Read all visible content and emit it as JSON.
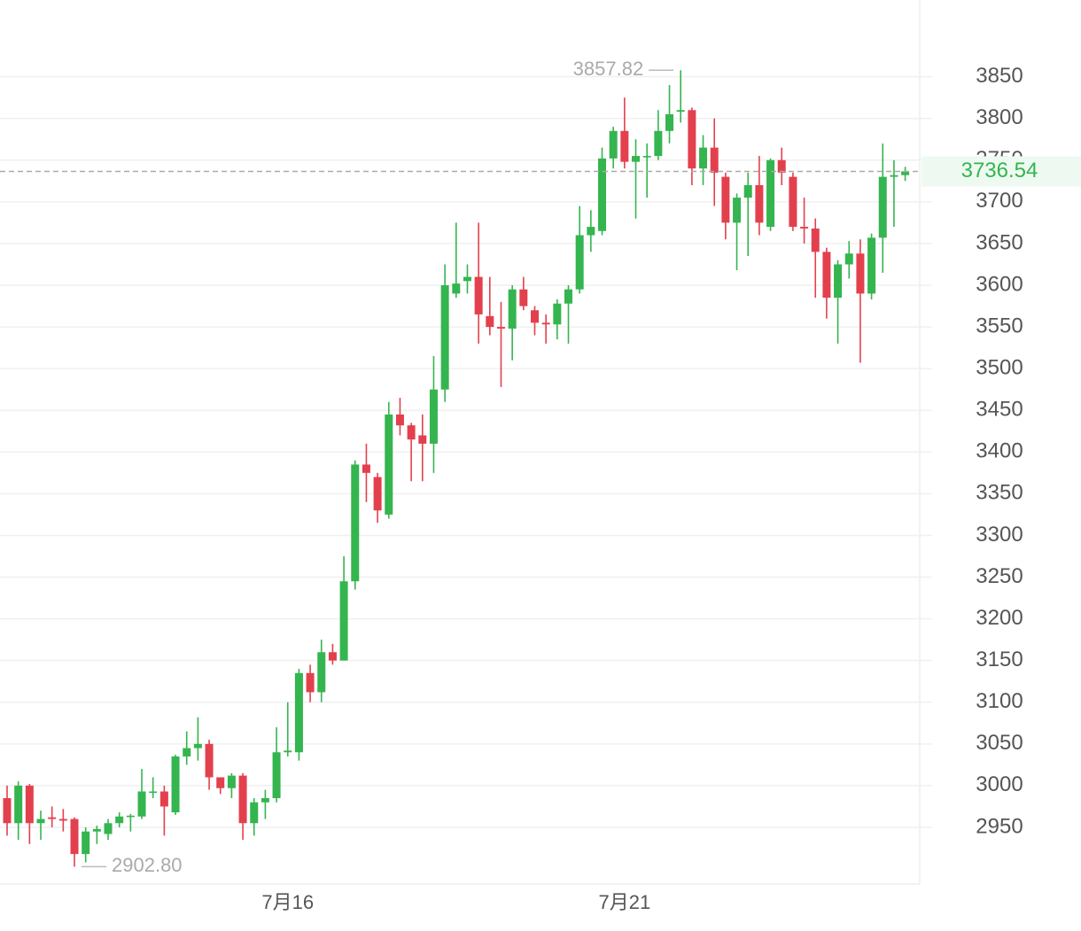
{
  "chart_data": {
    "type": "candlestick",
    "categories": [
      null,
      null,
      null,
      null,
      null,
      null,
      null,
      null,
      null,
      null,
      null,
      null,
      null,
      null,
      null,
      null,
      null,
      null,
      null,
      null,
      null,
      null,
      null,
      null,
      null,
      "7月16",
      null,
      null,
      null,
      null,
      null,
      null,
      null,
      null,
      null,
      null,
      null,
      null,
      null,
      null,
      null,
      null,
      null,
      null,
      null,
      null,
      null,
      null,
      null,
      null,
      null,
      null,
      null,
      null,
      null,
      "7月21",
      null,
      null,
      null,
      null,
      null,
      null,
      null,
      null,
      null,
      null,
      null,
      null,
      null,
      null,
      null,
      null,
      null,
      null,
      null,
      null,
      null,
      null,
      null,
      null,
      null
    ],
    "open": [
      2985,
      2955,
      3000,
      2955,
      2962,
      2960,
      2960,
      2918,
      2945,
      2942,
      2955,
      2963,
      2963,
      2993,
      2993,
      2968,
      3035,
      3045,
      3050,
      3010,
      2997,
      3012,
      2955,
      2980,
      2985,
      3040,
      3040,
      3135,
      3112,
      3160,
      3150,
      3245,
      3385,
      3370,
      3325,
      3445,
      3432,
      3420,
      3410,
      3475,
      3590,
      3605,
      3610,
      3563,
      3550,
      3548,
      3595,
      3570,
      3555,
      3553,
      3578,
      3595,
      3660,
      3665,
      3752,
      3785,
      3748,
      3755,
      3755,
      3785,
      3808,
      3810,
      3740,
      3765,
      3730,
      3675,
      3705,
      3720,
      3670,
      3750,
      3730,
      3670,
      3668,
      3640,
      3585,
      3625,
      3638,
      3590,
      3657,
      3730,
      3732
    ],
    "high": [
      3000,
      3005,
      3002,
      2970,
      2975,
      2972,
      2962,
      2950,
      2952,
      2960,
      2968,
      2966,
      3020,
      3010,
      3000,
      3037,
      3065,
      3082,
      3055,
      3010,
      3015,
      3015,
      2985,
      2995,
      3070,
      3100,
      3140,
      3145,
      3175,
      3170,
      3275,
      3390,
      3410,
      3375,
      3460,
      3465,
      3435,
      3445,
      3515,
      3625,
      3675,
      3625,
      3675,
      3610,
      3580,
      3600,
      3610,
      3575,
      3565,
      3583,
      3600,
      3695,
      3690,
      3765,
      3790,
      3825,
      3775,
      3770,
      3810,
      3840,
      3857.82,
      3813,
      3780,
      3800,
      3735,
      3710,
      3735,
      3755,
      3752,
      3765,
      3735,
      3705,
      3680,
      3645,
      3630,
      3653,
      3655,
      3662,
      3770,
      3750,
      3742
    ],
    "low": [
      2940,
      2935,
      2930,
      2935,
      2950,
      2945,
      2902.8,
      2908,
      2930,
      2935,
      2950,
      2945,
      2960,
      2985,
      2940,
      2965,
      3025,
      3030,
      2995,
      2990,
      2985,
      2935,
      2940,
      2960,
      2980,
      3035,
      3030,
      3100,
      3100,
      3145,
      3150,
      3235,
      3340,
      3315,
      3320,
      3420,
      3365,
      3365,
      3375,
      3460,
      3585,
      3590,
      3530,
      3540,
      3478,
      3510,
      3570,
      3540,
      3530,
      3535,
      3530,
      3590,
      3640,
      3660,
      3740,
      3740,
      3680,
      3705,
      3750,
      3770,
      3795,
      3720,
      3720,
      3695,
      3655,
      3618,
      3635,
      3660,
      3665,
      3720,
      3665,
      3650,
      3585,
      3560,
      3530,
      3608,
      3507,
      3583,
      3615,
      3670,
      3725
    ],
    "close": [
      2955,
      3000,
      2955,
      2960,
      2960,
      2958,
      2918,
      2945,
      2948,
      2955,
      2963,
      2964,
      2993,
      2993,
      2975,
      3035,
      3045,
      3050,
      3010,
      2997,
      3012,
      2955,
      2980,
      2985,
      3040,
      3042,
      3135,
      3112,
      3160,
      3150,
      3245,
      3385,
      3375,
      3330,
      3445,
      3432,
      3415,
      3410,
      3475,
      3600,
      3602,
      3610,
      3565,
      3550,
      3548,
      3595,
      3575,
      3555,
      3553,
      3578,
      3595,
      3660,
      3670,
      3752,
      3785,
      3748,
      3755,
      3755,
      3785,
      3805,
      3810,
      3740,
      3765,
      3735,
      3675,
      3705,
      3720,
      3675,
      3750,
      3735,
      3670,
      3668,
      3640,
      3585,
      3625,
      3638,
      3590,
      3657,
      3730,
      3732,
      3736.54
    ],
    "up_color": "#34b54f",
    "down_color": "#e3404e",
    "ylim": [
      2882,
      3942
    ],
    "yticks": [
      2950,
      3000,
      3050,
      3100,
      3150,
      3200,
      3250,
      3300,
      3350,
      3400,
      3450,
      3500,
      3550,
      3600,
      3650,
      3700,
      3750,
      3800,
      3850
    ],
    "grid": true,
    "annotations": [
      {
        "text": "3857.82",
        "value": 3857.82,
        "index": 60
      },
      {
        "text": "2902.80",
        "value": 2902.8,
        "index": 6
      },
      {
        "text": "3736.54",
        "value": 3736.54,
        "index": 80
      }
    ]
  }
}
